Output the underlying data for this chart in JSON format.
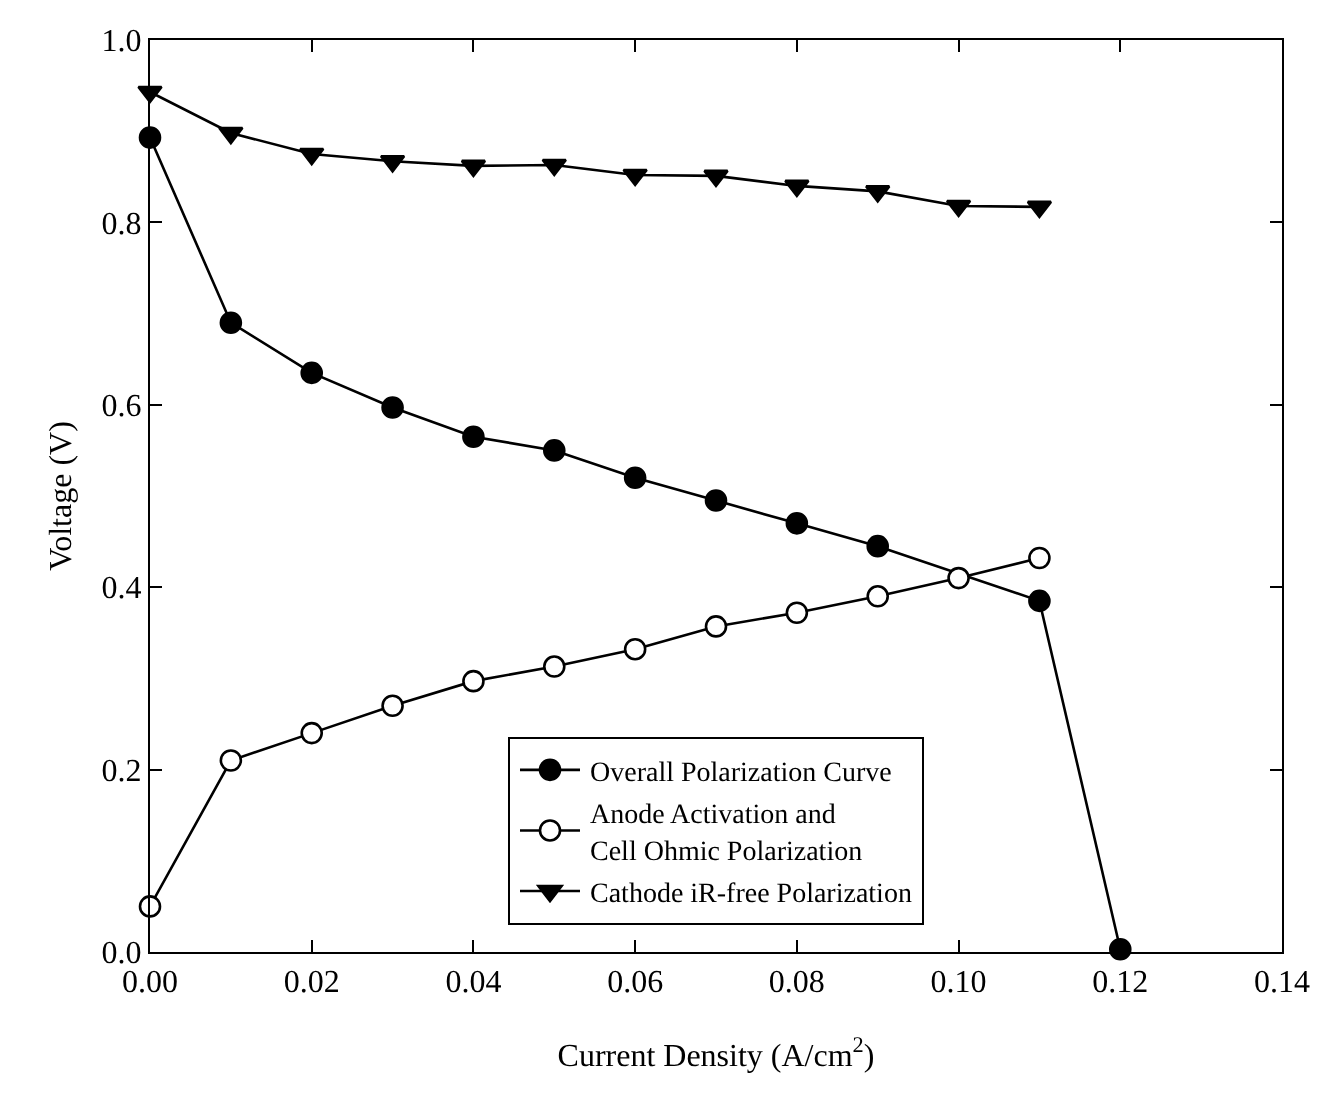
{
  "chart_data": {
    "type": "line",
    "xlabel": "Current Density (A/cm$^{2}$)",
    "ylabel": "Voltage (V)",
    "xlim": [
      0,
      0.14
    ],
    "ylim": [
      0,
      1.0
    ],
    "xticks": [
      {
        "value": 0,
        "label": "0.00"
      },
      {
        "value": 0.02,
        "label": "0.02"
      },
      {
        "value": 0.04,
        "label": "0.04"
      },
      {
        "value": 0.06,
        "label": "0.06"
      },
      {
        "value": 0.08,
        "label": "0.08"
      },
      {
        "value": 0.1,
        "label": "0.10"
      },
      {
        "value": 0.12,
        "label": "0.12"
      },
      {
        "value": 0.14,
        "label": "0.14"
      }
    ],
    "yticks": [
      {
        "value": 0,
        "label": "0.0"
      },
      {
        "value": 0.2,
        "label": "0.2"
      },
      {
        "value": 0.4,
        "label": "0.4"
      },
      {
        "value": 0.6,
        "label": "0.6"
      },
      {
        "value": 0.8,
        "label": "0.8"
      },
      {
        "value": 1.0,
        "label": "1.0"
      }
    ],
    "grid": false,
    "legend": "bottom",
    "line_style": "solid",
    "series": [
      {
        "name": "Overall Polarization Curve",
        "color": "#000000",
        "marker": "circle",
        "x": [
          0,
          0.01,
          0.02,
          0.03,
          0.04,
          0.05,
          0.06,
          0.07,
          0.08,
          0.09,
          0.11,
          0.12
        ],
        "values": [
          0.893,
          0.69,
          0.635,
          0.597,
          0.565,
          0.55,
          0.52,
          0.495,
          0.47,
          0.445,
          0.385,
          0.003
        ]
      },
      {
        "name": "Anode Activation and\nCell Ohmic Polarization",
        "color": "#000000",
        "marker": "open circle",
        "x": [
          0,
          0.01,
          0.02,
          0.03,
          0.04,
          0.05,
          0.06,
          0.07,
          0.08,
          0.09,
          0.1,
          0.11
        ],
        "values": [
          0.05,
          0.21,
          0.24,
          0.27,
          0.297,
          0.313,
          0.332,
          0.357,
          0.372,
          0.39,
          0.41,
          0.432
        ]
      },
      {
        "name": "Cathode iR-free Polarization",
        "color": "#000000",
        "marker": "triangle",
        "x": [
          0,
          0.01,
          0.02,
          0.03,
          0.04,
          0.05,
          0.06,
          0.07,
          0.08,
          0.09,
          0.1,
          0.11
        ],
        "values": [
          0.943,
          0.898,
          0.875,
          0.867,
          0.862,
          0.863,
          0.852,
          0.851,
          0.84,
          0.834,
          0.818,
          0.817
        ]
      }
    ]
  }
}
